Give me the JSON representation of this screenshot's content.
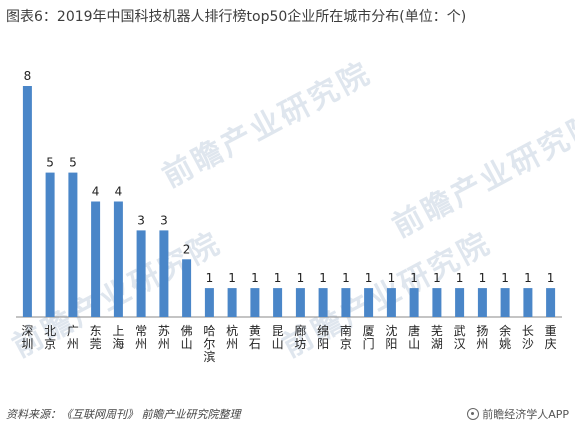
{
  "title": "图表6：2019年中国科技机器人排行榜top50企业所在城市分布(单位：个)",
  "watermark": "前瞻产业研究院",
  "source": "资料来源：《互联网周刊》 前瞻产业研究院整理",
  "brand": "前瞻经济学人APP",
  "colors": {
    "bar": "#4a86c8",
    "axis": "#888888"
  },
  "chart_data": {
    "type": "bar",
    "title": "图表6：2019年中国科技机器人排行榜top50企业所在城市分布(单位：个)",
    "xlabel": "",
    "ylabel": "",
    "categories": [
      "深圳",
      "北京",
      "广州",
      "东莞",
      "上海",
      "常州",
      "苏州",
      "佛山",
      "哈尔滨",
      "杭州",
      "黄石",
      "昆山",
      "廊坊",
      "绵阳",
      "南京",
      "厦门",
      "沈阳",
      "唐山",
      "芜湖",
      "武汉",
      "扬州",
      "余姚",
      "长沙",
      "重庆"
    ],
    "values": [
      8,
      5,
      5,
      4,
      4,
      3,
      3,
      2,
      1,
      1,
      1,
      1,
      1,
      1,
      1,
      1,
      1,
      1,
      1,
      1,
      1,
      1,
      1,
      1
    ],
    "ylim": [
      0,
      8
    ],
    "grid": false,
    "legend": "none",
    "data_labels": true
  }
}
